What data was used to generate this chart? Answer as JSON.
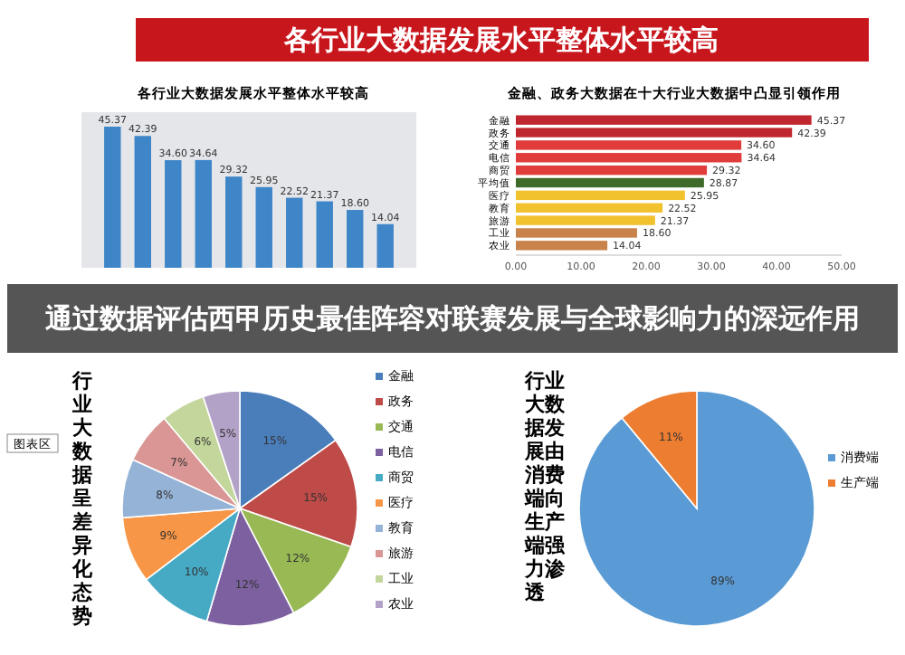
{
  "chart_data": [
    {
      "type": "bar",
      "title": "各行业大数据发展水平整体水平较高",
      "annotations": [
        "各行业大数据发展水平整体水平较高",
        "通过数据评估西甲历史最佳阵容对联赛发展与全球影响力的深远作用"
      ],
      "categories": [
        null,
        null,
        null,
        null,
        null,
        null,
        null,
        null,
        null,
        null
      ],
      "values": [
        45.37,
        42.39,
        34.6,
        34.64,
        29.32,
        25.95,
        22.52,
        21.37,
        18.6,
        14.04
      ],
      "value_labels": [
        "45.37",
        "42.39",
        "34.60",
        "34.64",
        "29.32",
        "25.95",
        "22.52",
        "21.37",
        "18.60",
        "14.04"
      ],
      "color": "#3f86c8"
    },
    {
      "type": "bar",
      "orientation": "horizontal",
      "title": "金融、政务大数据在十大行业大数据中凸显引领作用",
      "categories": [
        "金融",
        "政务",
        "交通",
        "电信",
        "商贸",
        "平均值",
        "医疗",
        "教育",
        "旅游",
        "工业",
        "农业"
      ],
      "values": [
        45.37,
        42.39,
        34.6,
        34.64,
        29.32,
        28.87,
        25.95,
        22.52,
        21.37,
        18.6,
        14.04
      ],
      "value_labels": [
        "45.37",
        "42.39",
        "34.60",
        "34.64",
        "29.32",
        "28.87",
        "25.95",
        "22.52",
        "21.37",
        "18.60",
        "14.04"
      ],
      "colors": [
        "#c0262d",
        "#c0262d",
        "#e03c3c",
        "#e03c3c",
        "#e03c3c",
        "#3f6b2a",
        "#f2c12e",
        "#f2c12e",
        "#f2c12e",
        "#c8824a",
        "#c8824a"
      ],
      "xlim": [
        0,
        50
      ],
      "xticks": [
        {
          "value": 0,
          "label": "0.00"
        },
        {
          "value": 10,
          "label": "10.00"
        },
        {
          "value": 20,
          "label": "20.00"
        },
        {
          "value": 30,
          "label": "30.00"
        },
        {
          "value": 40,
          "label": "40.00"
        },
        {
          "value": 50,
          "label": "50.00"
        }
      ]
    },
    {
      "type": "pie",
      "title": "行业大数据呈差异化态势",
      "annotations": [
        "图表区"
      ],
      "categories": [
        "金融",
        "政务",
        "交通",
        "电信",
        "商贸",
        "医疗",
        "教育",
        "旅游",
        "工业",
        "农业"
      ],
      "values": [
        15,
        15,
        12,
        12,
        10,
        9,
        8,
        7,
        6,
        5
      ],
      "value_labels": [
        "15%",
        "15%",
        "12%",
        "12%",
        "10%",
        "9%",
        "8%",
        "7%",
        "6%",
        "5%"
      ],
      "colors": [
        "#4a7ebb",
        "#be4b48",
        "#98b954",
        "#7d60a0",
        "#46aac5",
        "#f79646",
        "#95b3d7",
        "#d99694",
        "#c3d69b",
        "#b3a2c7"
      ],
      "legend": "right"
    },
    {
      "type": "pie",
      "title": "行业大数据发展由消费端向生产端强力渗透",
      "categories": [
        "消费端",
        "生产端"
      ],
      "values": [
        89,
        11
      ],
      "value_labels": [
        "89%",
        "11%"
      ],
      "colors": [
        "#5b9bd5",
        "#ed7d31"
      ],
      "legend": "right"
    }
  ]
}
